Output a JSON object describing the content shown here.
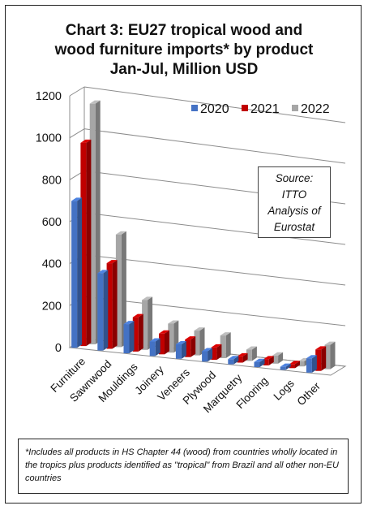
{
  "title_lines": [
    "Chart 3: EU27 tropical wood and",
    "wood furniture imports* by product",
    "Jan-Jul, Million USD"
  ],
  "source_lines": [
    "Source:",
    "ITTO",
    "Analysis of",
    "Eurostat"
  ],
  "footnote": "*Includes all products in HS Chapter 44 (wood) from countries wholly located in the tropics plus products identified as \"tropical\" from Brazil and all other non-EU countries",
  "colors": {
    "2020": "#4472c4",
    "2021": "#c00000",
    "2022": "#a6a6a6"
  },
  "chart_data": {
    "type": "bar",
    "title": "Chart 3: EU27 tropical wood and wood furniture imports* by product Jan-Jul, Million USD",
    "categories": [
      "Furniture",
      "Sawnwood",
      "Mouldings",
      "Joinery",
      "Veneers",
      "Plywood",
      "Marquetry",
      "Flooring",
      "Logs",
      "Other"
    ],
    "series": [
      {
        "name": "2020",
        "values": [
          700,
          370,
          140,
          70,
          70,
          50,
          25,
          25,
          15,
          70
        ]
      },
      {
        "name": "2021",
        "values": [
          970,
          410,
          165,
          100,
          85,
          60,
          30,
          30,
          20,
          105
        ]
      },
      {
        "name": "2022",
        "values": [
          1150,
          540,
          240,
          140,
          120,
          110,
          55,
          40,
          25,
          120
        ]
      }
    ],
    "y_ticks": [
      "0",
      "200",
      "400",
      "600",
      "800",
      "1000",
      "1200"
    ],
    "ylim": [
      0,
      1200
    ],
    "grid": true,
    "legend_position": "top-right"
  }
}
